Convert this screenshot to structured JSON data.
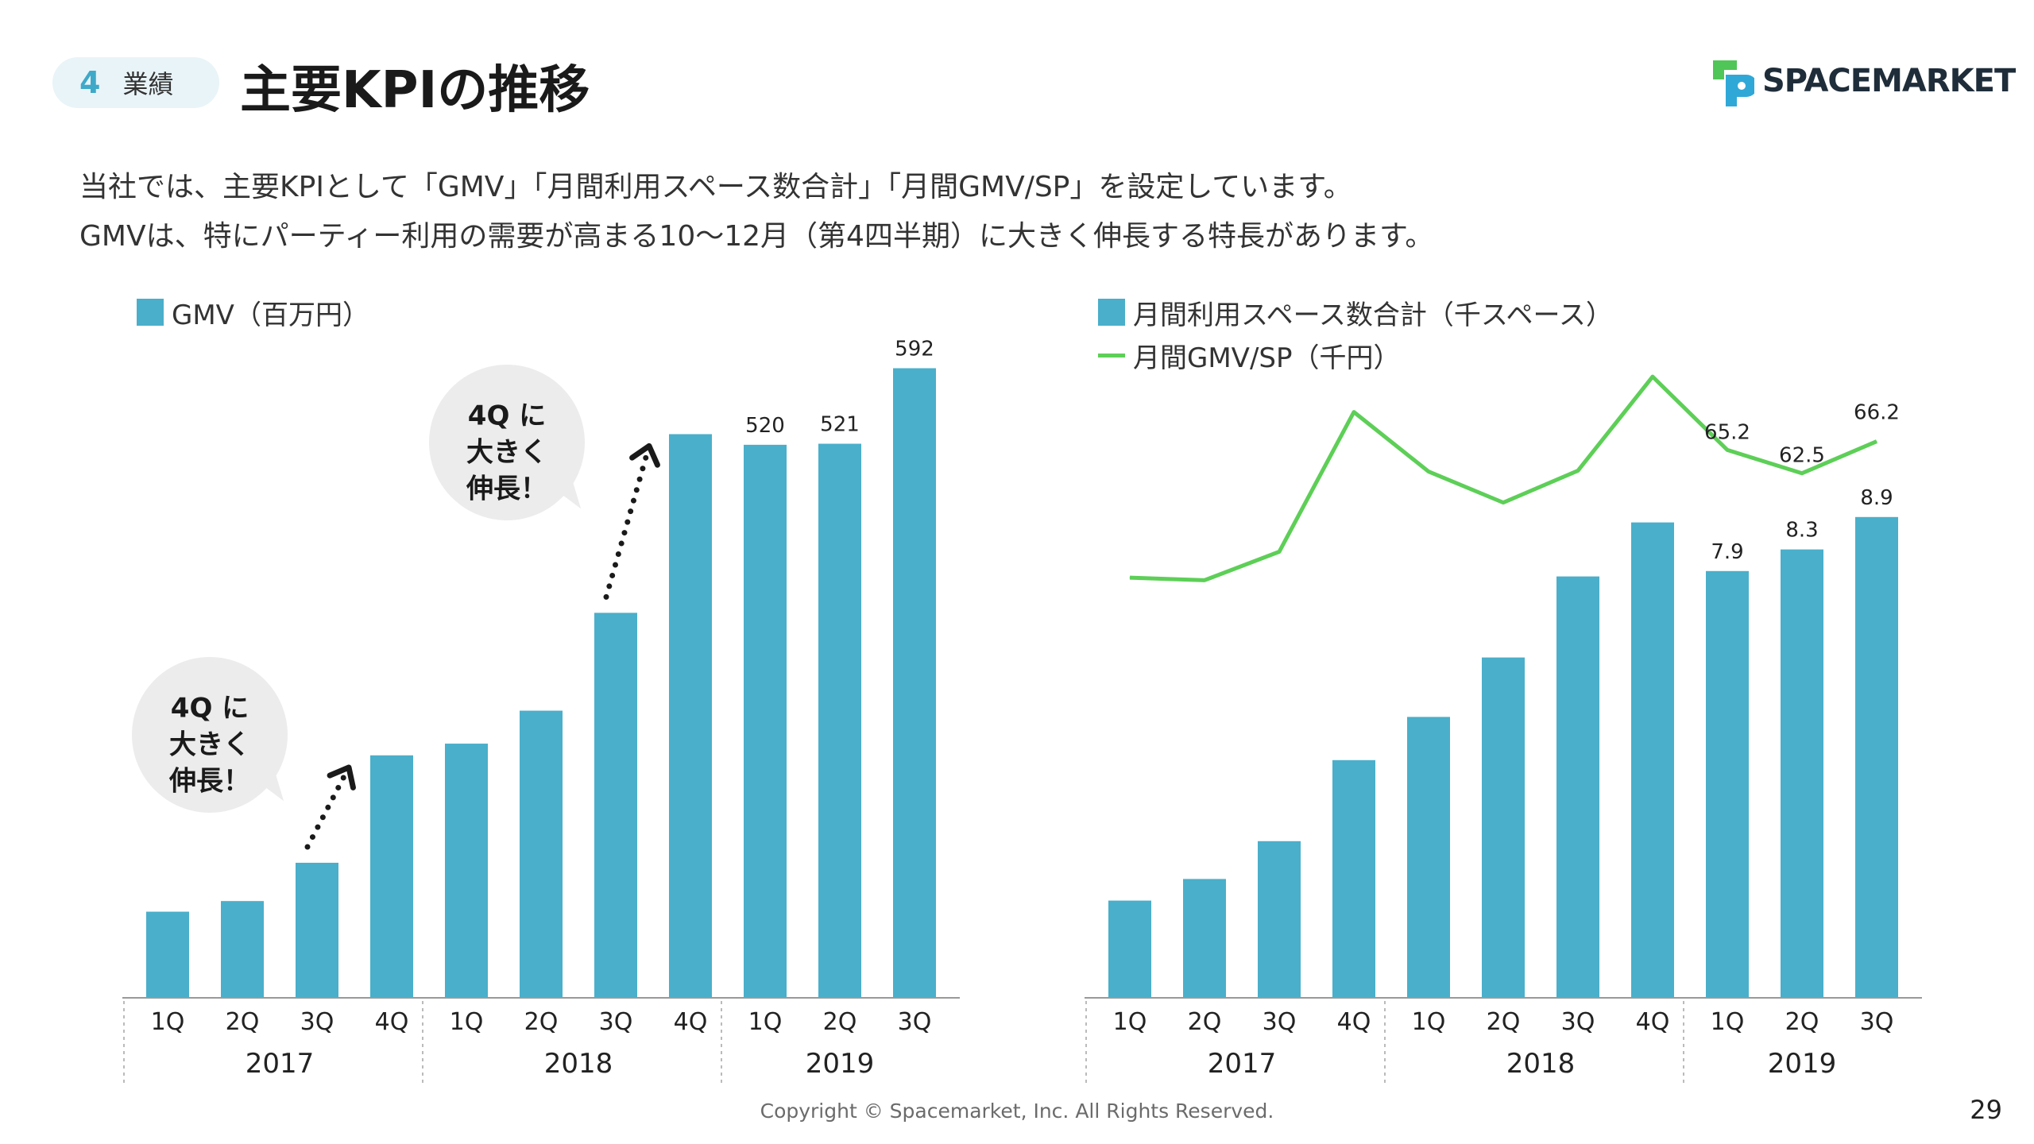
{
  "header": {
    "section_number": "4",
    "section_label": "業績",
    "title": "主要KPIの推移"
  },
  "brand": {
    "name": "SPACEMARKET",
    "logo_colors": [
      "#4fc657",
      "#2fa8d8"
    ]
  },
  "intro": {
    "line1": "当社では、主要KPIとして「GMV」「月間利用スペース数合計」「月間GMV/SP」を設定しています。",
    "line2": "GMVは、特にパーティー利用の需要が高まる10〜12月（第4四半期）に大きく伸長する特長があります。"
  },
  "colors": {
    "bar": "#4aafca",
    "line": "#5dcf57",
    "bubble": "#ececec",
    "section_accent": "#3fa9c9"
  },
  "callouts": [
    {
      "lines": [
        "4Q に",
        "大きく",
        "伸長！"
      ]
    },
    {
      "lines": [
        "4Q に",
        "大きく",
        "伸長！"
      ]
    }
  ],
  "chart_data": [
    {
      "type": "bar",
      "legend": "GMV（百万円）",
      "categories": [
        "1Q",
        "2Q",
        "3Q",
        "4Q",
        "1Q",
        "2Q",
        "3Q",
        "4Q",
        "1Q",
        "2Q",
        "3Q"
      ],
      "years": [
        {
          "label": "2017",
          "span": 4
        },
        {
          "label": "2018",
          "span": 4
        },
        {
          "label": "2019",
          "span": 3
        }
      ],
      "series": [
        {
          "name": "GMV（百万円）",
          "values": [
            81,
            91,
            127,
            228,
            239,
            270,
            362,
            530,
            520,
            521,
            592
          ],
          "labels": [
            "",
            "",
            "",
            "",
            "",
            "",
            "",
            "",
            "520",
            "521",
            "592"
          ]
        }
      ],
      "ylim": [
        0,
        620
      ]
    },
    {
      "type": "bar+line",
      "categories": [
        "1Q",
        "2Q",
        "3Q",
        "4Q",
        "1Q",
        "2Q",
        "3Q",
        "4Q",
        "1Q",
        "2Q",
        "3Q"
      ],
      "years": [
        {
          "label": "2017",
          "span": 4
        },
        {
          "label": "2018",
          "span": 4
        },
        {
          "label": "2019",
          "span": 3
        }
      ],
      "series": [
        {
          "name": "月間利用スペース数合計（千スペース）",
          "type": "bar",
          "values": [
            1.8,
            2.2,
            2.9,
            4.4,
            5.2,
            6.3,
            7.8,
            8.8,
            7.9,
            8.3,
            8.9
          ],
          "labels": [
            "",
            "",
            "",
            "",
            "",
            "",
            "",
            "",
            "7.9",
            "8.3",
            "8.9"
          ]
        },
        {
          "name": "月間GMV/SP（千円）",
          "type": "line",
          "values": [
            50.4,
            50.1,
            53.4,
            69.6,
            62.7,
            59.1,
            62.8,
            73.7,
            65.2,
            62.5,
            66.2
          ],
          "labels": [
            "",
            "",
            "",
            "",
            "",
            "",
            "",
            "",
            "65.2",
            "62.5",
            "66.2"
          ]
        }
      ],
      "ylim_bars": [
        0,
        12
      ],
      "ylim_line": [
        40,
        75
      ]
    }
  ],
  "footer": {
    "copyright": "Copyright © Spacemarket, Inc. All Rights Reserved.",
    "page_number": "29"
  }
}
